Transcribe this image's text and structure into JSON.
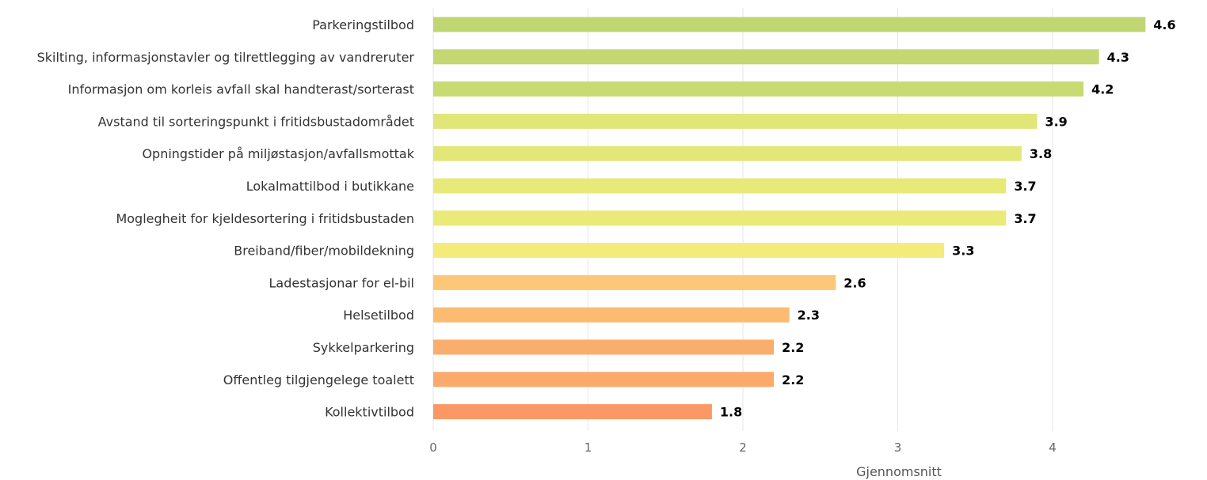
{
  "chart_data": {
    "type": "bar",
    "orientation": "horizontal",
    "categories": [
      "Parkeringstilbod",
      "Skilting, informasjonstavler og tilrettlegging av vandreruter",
      "Informasjon om korleis avfall skal handterast/sorterast",
      "Avstand til sorteringspunkt i fritidsbustadområdet",
      "Opningstider på miljøstasjon/avfallsmottak",
      "Lokalmattilbod i butikkane",
      "Moglegheit for kjeldesortering i fritidsbustaden",
      "Breiband/fiber/mobildekning",
      "Ladestasjonar for el-bil",
      "Helsetilbod",
      "Sykkelparkering",
      "Offentleg tilgjengelege toalett",
      "Kollektivtilbod"
    ],
    "values": [
      4.6,
      4.3,
      4.2,
      3.9,
      3.8,
      3.7,
      3.7,
      3.3,
      2.6,
      2.3,
      2.2,
      2.2,
      1.8
    ],
    "data_labels": [
      "4.6",
      "4.3",
      "4.2",
      "3.9",
      "3.8",
      "3.7",
      "3.7",
      "3.3",
      "2.6",
      "2.3",
      "2.2",
      "2.2",
      "1.8"
    ],
    "bar_colors": [
      "#bfd673",
      "#c3d872",
      "#c8da72",
      "#e0e677",
      "#e3e778",
      "#e7e978",
      "#eaea79",
      "#f4eb7a",
      "#fcc776",
      "#fbbb71",
      "#faae6e",
      "#fbaa6c",
      "#fc9866"
    ],
    "x_ticks": [
      "0",
      "1",
      "2",
      "3",
      "4"
    ],
    "xlabel": "Gjennomsnitt",
    "xlim": [
      0,
      5
    ],
    "grid": true,
    "legend": "none"
  }
}
